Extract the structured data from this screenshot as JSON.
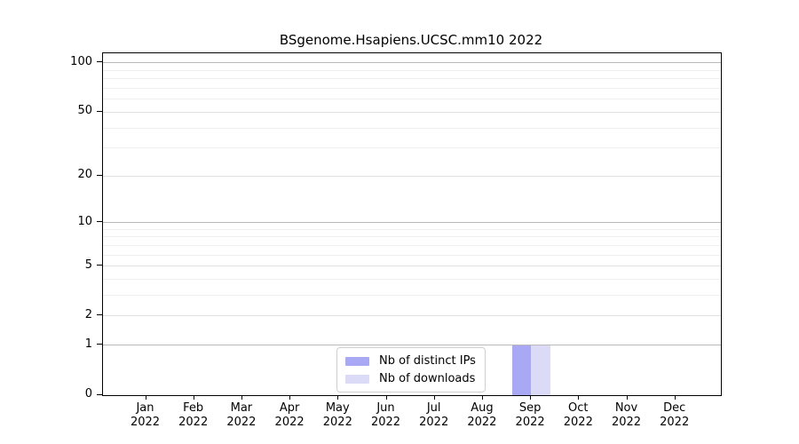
{
  "chart_data": {
    "type": "bar",
    "title": "BSgenome.Hsapiens.UCSC.mm10 2022",
    "categories": [
      "Jan 2022",
      "Feb 2022",
      "Mar 2022",
      "Apr 2022",
      "May 2022",
      "Jun 2022",
      "Jul 2022",
      "Aug 2022",
      "Sep 2022",
      "Oct 2022",
      "Nov 2022",
      "Dec 2022"
    ],
    "series": [
      {
        "name": "Nb of distinct IPs",
        "color": "#a8a8f4",
        "values": [
          0,
          0,
          0,
          0,
          0,
          0,
          0,
          0,
          1,
          0,
          0,
          0
        ]
      },
      {
        "name": "Nb of downloads",
        "color": "#dbdbf8",
        "values": [
          0,
          0,
          0,
          0,
          0,
          0,
          0,
          0,
          1,
          0,
          0,
          0
        ]
      }
    ],
    "y_axis": {
      "scale": "log1p",
      "tick_values": [
        0,
        1,
        2,
        5,
        10,
        20,
        50,
        100
      ],
      "tick_labels": [
        "0",
        "1",
        "2",
        "5",
        "10",
        "20",
        "50",
        "100"
      ],
      "minor_gridline_values": [
        3,
        4,
        6,
        7,
        8,
        9,
        30,
        40,
        60,
        70,
        80,
        90
      ],
      "ylim": [
        0,
        113
      ]
    },
    "xlabel": "",
    "ylabel": "",
    "grid": true,
    "legend_position": "bottom-center"
  },
  "colors": {
    "background": "#ffffff",
    "axis": "#000000",
    "grid_major": "#b9b9b9",
    "grid_mid": "#e1e1e1",
    "grid_minor": "#efefef",
    "legend_border": "#cfcfcf",
    "bar_distinct_ips": "#a8a8f4",
    "bar_downloads": "#dbdbf8"
  }
}
